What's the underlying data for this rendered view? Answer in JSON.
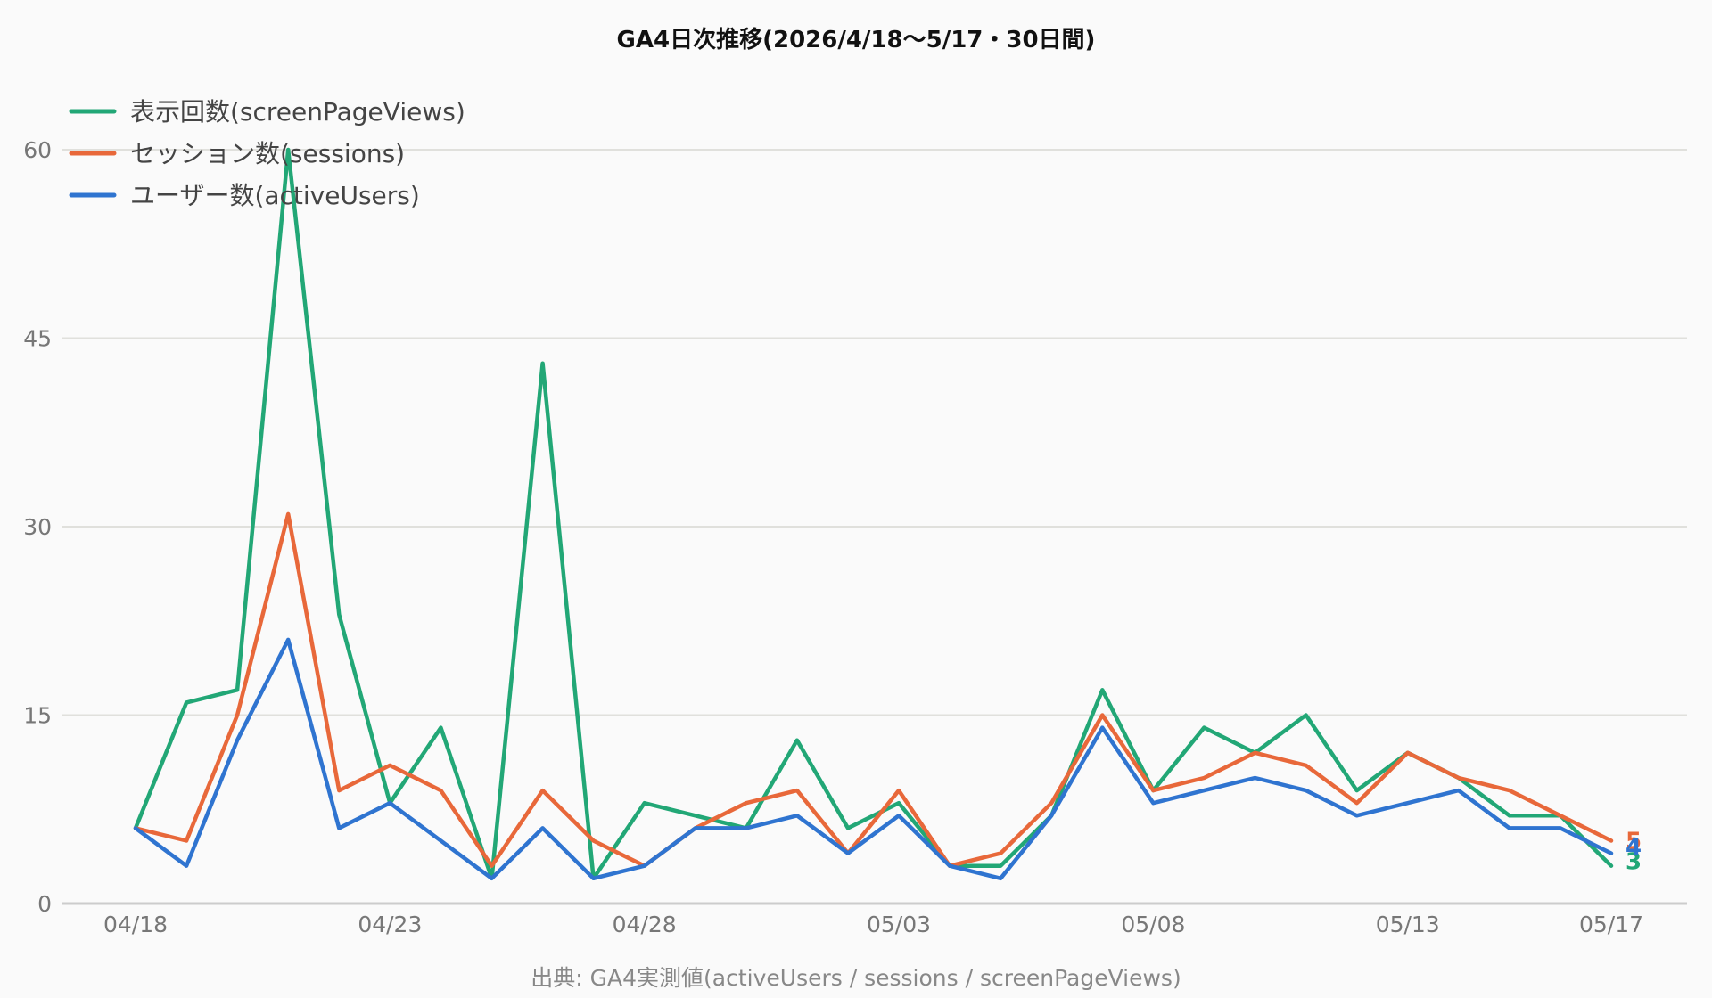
{
  "chart_data": {
    "type": "line",
    "title": "GA4日次推移(2026/4/18〜5/17・30日間)",
    "source": "出典: GA4実測値(activeUsers / sessions / screenPageViews)",
    "xlabel": "",
    "ylabel": "",
    "ylim": [
      0,
      60
    ],
    "yticks": [
      0,
      15,
      30,
      45,
      60
    ],
    "grid": true,
    "legend_position": "top-left",
    "x": [
      "04/18",
      "04/19",
      "04/20",
      "04/21",
      "04/22",
      "04/23",
      "04/24",
      "04/25",
      "04/26",
      "04/27",
      "04/28",
      "04/29",
      "04/30",
      "05/01",
      "05/02",
      "05/03",
      "05/04",
      "05/05",
      "05/06",
      "05/07",
      "05/08",
      "05/09",
      "05/10",
      "05/11",
      "05/12",
      "05/13",
      "05/14",
      "05/15",
      "05/16",
      "05/17"
    ],
    "xtick_labels": [
      "04/18",
      "04/23",
      "04/28",
      "05/03",
      "05/08",
      "05/13",
      "05/17"
    ],
    "series": [
      {
        "name": "表示回数(screenPageViews)",
        "color": "#22a776",
        "values": [
          6,
          16,
          17,
          60,
          23,
          8,
          14,
          2,
          43,
          2,
          8,
          7,
          6,
          13,
          6,
          8,
          3,
          3,
          7,
          17,
          9,
          14,
          12,
          15,
          9,
          12,
          10,
          7,
          7,
          3
        ]
      },
      {
        "name": "セッション数(sessions)",
        "color": "#e8683a",
        "values": [
          6,
          5,
          15,
          31,
          9,
          11,
          9,
          3,
          9,
          5,
          3,
          6,
          8,
          9,
          4,
          9,
          3,
          4,
          8,
          15,
          9,
          10,
          12,
          11,
          8,
          12,
          10,
          9,
          7,
          5
        ]
      },
      {
        "name": "ユーザー数(activeUsers)",
        "color": "#2f74d0",
        "values": [
          6,
          3,
          13,
          21,
          6,
          8,
          5,
          2,
          6,
          2,
          3,
          6,
          6,
          7,
          4,
          7,
          3,
          2,
          7,
          14,
          8,
          9,
          10,
          9,
          7,
          8,
          9,
          6,
          6,
          4
        ]
      }
    ],
    "end_labels": [
      "3",
      "5",
      "4"
    ]
  }
}
